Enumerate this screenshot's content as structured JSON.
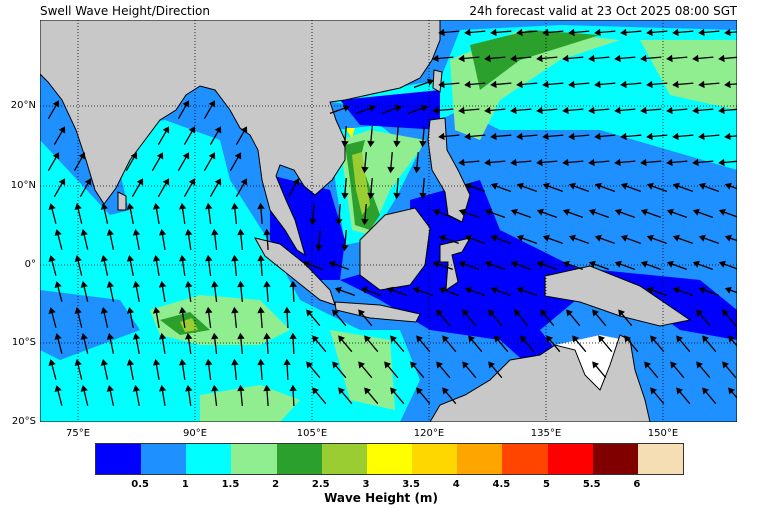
{
  "header": {
    "title": "Swell Wave Height/Direction",
    "valid_time": "24h forecast valid at 23 Oct 2025 08:00 SGT"
  },
  "map": {
    "lat_labels": [
      "20°N",
      "10°N",
      "0°",
      "10°S",
      "20°S"
    ],
    "lon_labels": [
      "75°E",
      "90°E",
      "105°E",
      "120°E",
      "135°E",
      "150°E"
    ],
    "land_color": "#c8c8c8",
    "variable": "swell wave height and direction"
  },
  "colorbar": {
    "label": "Wave Height (m)",
    "ticks": [
      "0.5",
      "1",
      "1.5",
      "2",
      "2.5",
      "3",
      "3.5",
      "4",
      "4.5",
      "5",
      "5.5",
      "6"
    ],
    "colors": [
      "#0000ff",
      "#1e90ff",
      "#00ffff",
      "#90ee90",
      "#2ca02c",
      "#9acd32",
      "#ffff00",
      "#ffd700",
      "#ffa500",
      "#ff4500",
      "#ff0000",
      "#800000",
      "#f5deb3"
    ]
  }
}
